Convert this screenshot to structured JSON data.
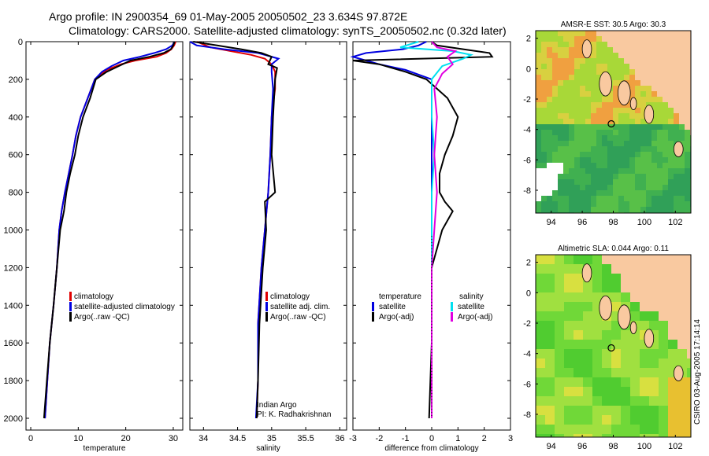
{
  "header": {
    "title_line1": "Argo profile: IN 2900354_69 01-May-2005 20050502_23 3.634S 97.872E",
    "title_line2": "Climatology: CARS2000. Satellite-adjusted climatology: synTS_20050502.nc (0.32d later)"
  },
  "footer_credit": "CSIRO 03-Aug-2005 17:14:14",
  "colors": {
    "climatology": "#e00000",
    "satellite": "#0000e0",
    "argo": "#000000",
    "cyan": "#00e0f0",
    "magenta": "#e000e0",
    "land": "#f9c9a0"
  },
  "chart_data": [
    {
      "type": "line",
      "name": "temperature-profile",
      "xlabel": "temperature",
      "ylabel": "",
      "xlim": [
        -1,
        32
      ],
      "ylim": [
        2050,
        0
      ],
      "y_inverted": true,
      "xticks": [
        0,
        10,
        20,
        30
      ],
      "yticks": [
        0,
        200,
        400,
        600,
        800,
        1000,
        1200,
        1400,
        1600,
        1800,
        2000
      ],
      "legend": [
        "climatology",
        "satellite-adjusted climatology",
        "Argo(..raw -QC)"
      ],
      "series": [
        {
          "name": "climatology",
          "color": "#e00000",
          "points": [
            [
              30.5,
              0
            ],
            [
              30.2,
              20
            ],
            [
              29.6,
              40
            ],
            [
              28.5,
              60
            ],
            [
              26.5,
              80
            ],
            [
              22,
              100
            ],
            [
              19,
              120
            ],
            [
              16,
              150
            ],
            [
              13.5,
              200
            ],
            [
              12,
              300
            ],
            [
              10.5,
              400
            ],
            [
              9.5,
              500
            ],
            [
              8.8,
              600
            ],
            [
              8,
              700
            ],
            [
              7.2,
              800
            ],
            [
              6.5,
              900
            ],
            [
              6,
              1000
            ],
            [
              5.5,
              1200
            ],
            [
              4.8,
              1400
            ],
            [
              4,
              1600
            ],
            [
              3.5,
              1800
            ],
            [
              3,
              2000
            ]
          ]
        },
        {
          "name": "satellite-adjusted climatology",
          "color": "#0000e0",
          "points": [
            [
              30.3,
              0
            ],
            [
              29.8,
              20
            ],
            [
              28.5,
              40
            ],
            [
              26,
              60
            ],
            [
              23,
              80
            ],
            [
              19.5,
              100
            ],
            [
              17,
              130
            ],
            [
              15,
              160
            ],
            [
              13.5,
              200
            ],
            [
              12,
              300
            ],
            [
              10.5,
              400
            ],
            [
              9.5,
              500
            ],
            [
              8.8,
              600
            ],
            [
              8,
              700
            ],
            [
              7.2,
              800
            ],
            [
              6.5,
              900
            ],
            [
              6,
              1000
            ],
            [
              5.5,
              1200
            ],
            [
              4.8,
              1400
            ],
            [
              4,
              1600
            ],
            [
              3.5,
              1800
            ],
            [
              3,
              2000
            ]
          ]
        },
        {
          "name": "Argo(..raw -QC)",
          "color": "#000000",
          "points": [
            [
              30.3,
              0
            ],
            [
              30,
              20
            ],
            [
              29.5,
              40
            ],
            [
              28,
              60
            ],
            [
              25,
              80
            ],
            [
              21,
              100
            ],
            [
              18.5,
              130
            ],
            [
              16,
              160
            ],
            [
              13.7,
              200
            ],
            [
              12.5,
              300
            ],
            [
              11,
              400
            ],
            [
              10,
              500
            ],
            [
              9.3,
              600
            ],
            [
              8.3,
              700
            ],
            [
              7.5,
              800
            ],
            [
              7,
              900
            ],
            [
              6.2,
              1000
            ],
            [
              5.5,
              1200
            ],
            [
              4.8,
              1400
            ],
            [
              4,
              1600
            ],
            [
              3.4,
              1800
            ],
            [
              2.8,
              2000
            ]
          ]
        }
      ]
    },
    {
      "type": "line",
      "name": "salinity-profile",
      "xlabel": "salinity",
      "ylabel": "",
      "xlim": [
        33.8,
        36.1
      ],
      "ylim": [
        2050,
        0
      ],
      "y_inverted": true,
      "xticks": [
        34,
        34.5,
        35,
        35.5,
        36
      ],
      "legend": [
        "climatology",
        "satellite adj. clim.",
        "Argo(..raw -QC)"
      ],
      "annotation": [
        "Indian Argo",
        "PI: K. Radhakrishnan"
      ],
      "series": [
        {
          "name": "climatology",
          "color": "#e00000",
          "points": [
            [
              33.9,
              0
            ],
            [
              34.1,
              30
            ],
            [
              34.4,
              50
            ],
            [
              34.7,
              70
            ],
            [
              34.9,
              90
            ],
            [
              35,
              120
            ],
            [
              35.05,
              160
            ],
            [
              35.05,
              250
            ],
            [
              35,
              400
            ],
            [
              34.98,
              600
            ],
            [
              34.95,
              800
            ],
            [
              34.9,
              1000
            ],
            [
              34.85,
              1200
            ],
            [
              34.8,
              1500
            ],
            [
              34.8,
              1800
            ],
            [
              34.78,
              2000
            ]
          ]
        },
        {
          "name": "satellite adj. clim.",
          "color": "#0000e0",
          "points": [
            [
              33.8,
              0
            ],
            [
              33.9,
              20
            ],
            [
              34.3,
              40
            ],
            [
              34.8,
              60
            ],
            [
              35.1,
              90
            ],
            [
              35,
              120
            ],
            [
              35,
              160
            ],
            [
              35.02,
              250
            ],
            [
              35,
              400
            ],
            [
              34.98,
              600
            ],
            [
              34.95,
              800
            ],
            [
              34.9,
              1000
            ],
            [
              34.85,
              1200
            ],
            [
              34.8,
              1500
            ],
            [
              34.8,
              1800
            ],
            [
              34.77,
              2000
            ]
          ]
        },
        {
          "name": "Argo(..raw -QC)",
          "color": "#000000",
          "points": [
            [
              33.85,
              0
            ],
            [
              34.2,
              20
            ],
            [
              34.55,
              40
            ],
            [
              34.85,
              60
            ],
            [
              35.0,
              80
            ],
            [
              34.95,
              120
            ],
            [
              35.08,
              140
            ],
            [
              35.05,
              200
            ],
            [
              35.02,
              400
            ],
            [
              35.0,
              600
            ],
            [
              35.05,
              800
            ],
            [
              34.9,
              850
            ],
            [
              34.92,
              1000
            ],
            [
              34.87,
              1200
            ],
            [
              34.82,
              1500
            ],
            [
              34.8,
              1800
            ],
            [
              34.78,
              2000
            ]
          ]
        }
      ]
    },
    {
      "type": "line",
      "name": "difference-profile",
      "xlabel": "difference from climatology",
      "ylabel": "",
      "xlim": [
        -3,
        3
      ],
      "ylim": [
        2050,
        0
      ],
      "y_inverted": true,
      "xticks": [
        -3,
        -2,
        -1,
        0,
        1,
        2,
        3
      ],
      "legend_left": [
        "temperature",
        "satellite",
        "Argo(-adj)"
      ],
      "legend_right": [
        "salinity",
        "satellite",
        "Argo(-adj)"
      ],
      "series": [
        {
          "name": "temperature satellite",
          "color": "#0000e0",
          "points": [
            [
              -0.2,
              0
            ],
            [
              -0.5,
              20
            ],
            [
              -1.1,
              40
            ],
            [
              -2.5,
              60
            ],
            [
              -3,
              80
            ],
            [
              -2.5,
              100
            ],
            [
              -2,
              120
            ],
            [
              -1,
              150
            ],
            [
              0,
              200
            ],
            [
              0,
              400
            ],
            [
              0,
              800
            ],
            [
              0,
              1200
            ],
            [
              0,
              1600
            ],
            [
              0,
              2000
            ]
          ]
        },
        {
          "name": "temperature Argo(-adj)",
          "color": "#000000",
          "points": [
            [
              0,
              0
            ],
            [
              0.2,
              20
            ],
            [
              1.2,
              40
            ],
            [
              2.2,
              60
            ],
            [
              2.3,
              80
            ],
            [
              -3,
              100
            ],
            [
              -2,
              120
            ],
            [
              -1,
              160
            ],
            [
              -0.2,
              200
            ],
            [
              0.6,
              300
            ],
            [
              1,
              400
            ],
            [
              0.8,
              500
            ],
            [
              0.5,
              600
            ],
            [
              0.3,
              700
            ],
            [
              0.3,
              800
            ],
            [
              0.5,
              850
            ],
            [
              0.8,
              900
            ],
            [
              0.4,
              1000
            ],
            [
              0,
              1200
            ],
            [
              0,
              1600
            ],
            [
              -0.1,
              2000
            ]
          ]
        },
        {
          "name": "salinity satellite",
          "color": "#00e0f0",
          "points": [
            [
              -0.5,
              0
            ],
            [
              -1.2,
              30
            ],
            [
              0.8,
              50
            ],
            [
              1.5,
              70
            ],
            [
              1.2,
              90
            ],
            [
              0.4,
              130
            ],
            [
              0,
              200
            ],
            [
              0,
              400
            ],
            [
              0.1,
              600
            ],
            [
              0,
              800
            ],
            [
              0,
              1200
            ],
            [
              0,
              1600
            ],
            [
              0,
              2000
            ]
          ]
        },
        {
          "name": "salinity Argo(-adj)",
          "color": "#e000e0",
          "points": [
            [
              0,
              0
            ],
            [
              0.2,
              30
            ],
            [
              0.9,
              50
            ],
            [
              0.6,
              80
            ],
            [
              0.8,
              120
            ],
            [
              0.4,
              170
            ],
            [
              0.1,
              250
            ],
            [
              0.2,
              400
            ],
            [
              0.1,
              600
            ],
            [
              0.2,
              800
            ],
            [
              0.1,
              1000
            ],
            [
              0,
              1200
            ],
            [
              0,
              1600
            ],
            [
              0,
              2000
            ]
          ]
        }
      ]
    },
    {
      "type": "heatmap",
      "name": "sst-map",
      "title": "AMSR-E SST: 30.5 Argo: 30.3",
      "xlim": [
        93,
        103
      ],
      "ylim": [
        -9.5,
        2.5
      ],
      "xticks": [
        94,
        96,
        98,
        100,
        102
      ],
      "yticks": [
        2,
        0,
        -2,
        -4,
        -6,
        -8
      ],
      "argo_position": [
        97.87,
        -3.63
      ]
    },
    {
      "type": "heatmap",
      "name": "sla-map",
      "title": "Altimetric SLA: 0.044 Argo: 0.11",
      "xlim": [
        93,
        103
      ],
      "ylim": [
        -9.5,
        2.5
      ],
      "xticks": [
        94,
        96,
        98,
        100,
        102
      ],
      "yticks": [
        2,
        0,
        -2,
        -4,
        -6,
        -8
      ],
      "argo_position": [
        97.87,
        -3.63
      ]
    }
  ]
}
